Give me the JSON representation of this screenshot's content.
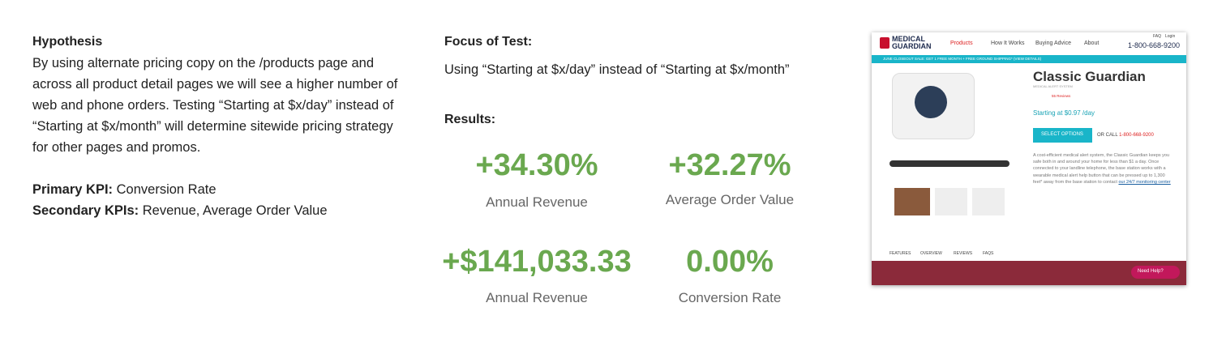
{
  "hypothesis": {
    "title": "Hypothesis",
    "body": "By using alternate pricing copy on the /products page and across all product detail pages we will see a higher number of web and phone orders.  Testing “Starting at $x/day” instead of “Starting at $x/month” will determine sitewide pricing strategy for other pages and promos.",
    "primary_kpi": {
      "label": "Primary KPI:",
      "value": "Conversion Rate"
    },
    "secondary_kpis": {
      "label": "Secondary KPIs:",
      "value": "Revenue, Average Order Value"
    }
  },
  "focus": {
    "title": "Focus of Test:",
    "body": "Using “Starting at $x/day” instead of “Starting at $x/month”"
  },
  "results": {
    "title": "Results:",
    "metrics": [
      {
        "value": "+34.30%",
        "label": "Annual Revenue"
      },
      {
        "value": "+32.27%",
        "label": "Average Order Value"
      },
      {
        "value": "+$141,033.33",
        "label": "Annual Revenue"
      },
      {
        "value": "0.00%",
        "label": "Conversion Rate"
      }
    ]
  },
  "screenshot": {
    "logo": [
      "MEDICAL",
      "GUARDIAN"
    ],
    "top_links": [
      "FAQ",
      "Login"
    ],
    "nav": [
      "Products",
      "How It Works",
      "Buying Advice",
      "About"
    ],
    "phone": "1-800-668-9200",
    "banner": "JUNE CLOSEOUT SALE: GET 1 FREE MONTH + FREE GROUND SHIPPING* (VIEW DETAILS)",
    "product_title": "Classic Guardian",
    "product_subtitle": "MEDICAL ALERT SYSTEM",
    "reviews": "55 Reviews",
    "price": "Starting at $0.97 /day",
    "button": "SELECT OPTIONS",
    "or_call": "OR CALL",
    "call_number": "1-800-668-9200",
    "description": "A cost-efficient medical alert system, the Classic Guardian keeps you safe both in and around your home for less than $1 a day. Once connected to your landline telephone, the base station works with a wearable medical alert help button that can be pressed up to 1,300 feet* away from the base station to contact",
    "link": "our 24/7 monitoring center",
    "tabs": [
      "FEATURES",
      "OVERVIEW",
      "REVIEWS",
      "FAQS"
    ],
    "help": "Need Help?"
  }
}
